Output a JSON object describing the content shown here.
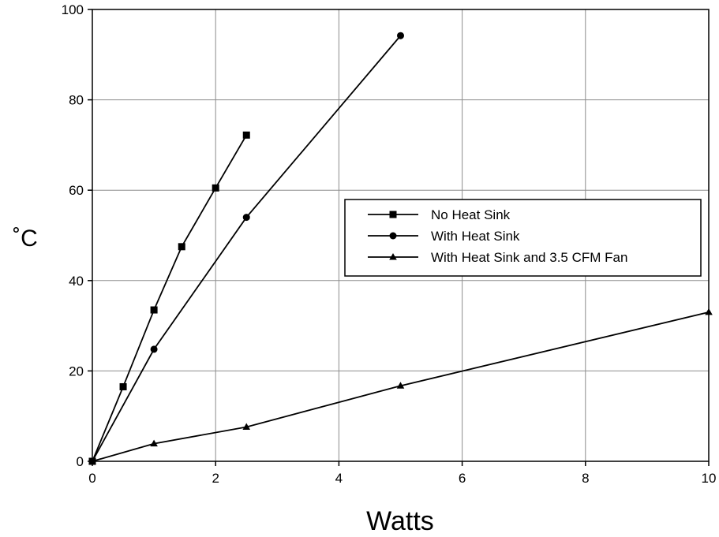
{
  "chart_data": {
    "type": "line",
    "xlabel": "Watts",
    "ylabel": "˚C",
    "xlim": [
      0,
      10
    ],
    "ylim": [
      0,
      100
    ],
    "xticks": [
      "0",
      "2",
      "4",
      "6",
      "8",
      "10"
    ],
    "yticks": [
      "0",
      "20",
      "40",
      "60",
      "80",
      "100"
    ],
    "grid": true,
    "legend_position": "center-right",
    "series": [
      {
        "name": "No Heat Sink",
        "marker": "square",
        "x": [
          0,
          0.5,
          1.0,
          1.45,
          2.0,
          2.5
        ],
        "y": [
          0,
          16.5,
          33.5,
          47.5,
          60.5,
          72.2
        ]
      },
      {
        "name": "With Heat Sink",
        "marker": "circle",
        "x": [
          0,
          1.0,
          2.5,
          5.0
        ],
        "y": [
          0,
          24.8,
          54.0,
          94.2
        ]
      },
      {
        "name": "With Heat Sink and 3.5 CFM Fan",
        "marker": "triangle",
        "x": [
          0,
          1.0,
          2.5,
          5.0,
          10.0
        ],
        "y": [
          0,
          3.9,
          7.6,
          16.7,
          33.0
        ]
      }
    ]
  }
}
